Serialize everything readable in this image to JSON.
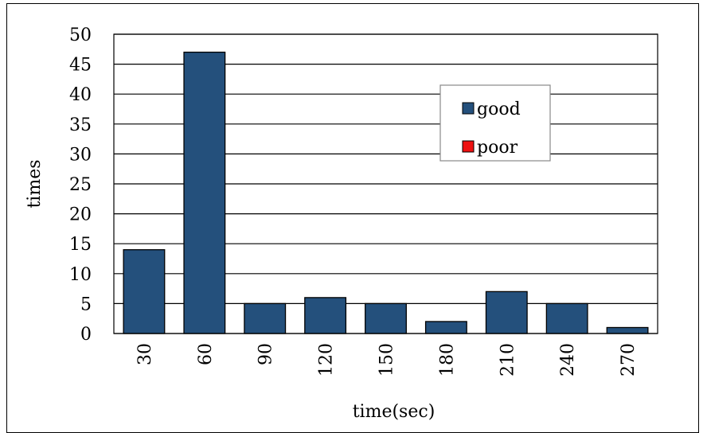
{
  "chart_data": {
    "type": "bar",
    "categories": [
      "30",
      "60",
      "90",
      "120",
      "150",
      "180",
      "210",
      "240",
      "270"
    ],
    "series": [
      {
        "name": "good",
        "values": [
          14,
          47,
          5,
          6,
          5,
          2,
          7,
          5,
          1
        ],
        "color": "#24507c"
      },
      {
        "name": "poor",
        "values": [
          0,
          0,
          0,
          0,
          0,
          0,
          0,
          0,
          0
        ],
        "color": "#ee1111"
      }
    ],
    "xlabel": "time(sec)",
    "ylabel": "times",
    "ylim": [
      0,
      50
    ],
    "yticks": [
      "0",
      "5",
      "10",
      "15",
      "20",
      "25",
      "30",
      "35",
      "40",
      "45",
      "50"
    ],
    "grid": true,
    "legend_position": "upper-right"
  }
}
